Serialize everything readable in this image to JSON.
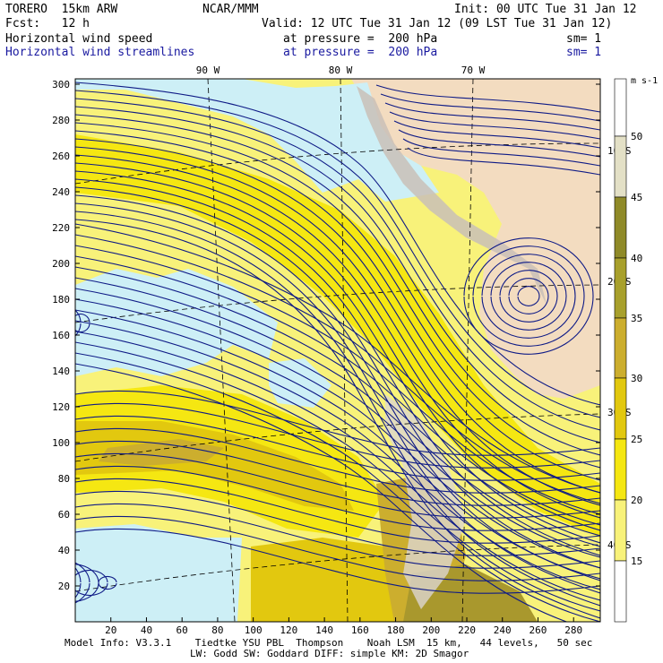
{
  "header": {
    "model": "TORERO  15km ARW",
    "center": "NCAR/MMM",
    "init": "Init: 00 UTC Tue 31 Jan 12",
    "fcst": "Fcst:   12 h",
    "valid": "Valid: 12 UTC Tue 31 Jan 12 (09 LST Tue 31 Jan 12)",
    "field1_name": "Horizontal wind speed",
    "field1_level": "at pressure =  200 hPa",
    "field1_sm": "sm= 1",
    "field2_name": "Horizontal wind streamlines",
    "field2_level": "at pressure =  200 hPa",
    "field2_sm": "sm= 1"
  },
  "map": {
    "top_lon_labels": [
      "90 W",
      "80 W",
      "70 W"
    ],
    "right_lat_labels": [
      "10 S",
      "20 S",
      "30 S",
      "40 S"
    ],
    "x_ticks": [
      "20",
      "40",
      "60",
      "80",
      "100",
      "120",
      "140",
      "160",
      "180",
      "200",
      "220",
      "240",
      "260",
      "280"
    ],
    "y_ticks": [
      "20",
      "40",
      "60",
      "80",
      "100",
      "120",
      "140",
      "160",
      "180",
      "200",
      "220",
      "240",
      "260",
      "280",
      "300"
    ],
    "colors": {
      "land": "#f3dcc0",
      "mountain": "#c9bfb7",
      "low_speed": "#cdeff6",
      "s15": "#f8f27a",
      "s20": "#f5e712",
      "s25": "#e2c80f",
      "s30": "#ccae2e",
      "s35": "#a9982d",
      "streamline": "#0e1a86"
    }
  },
  "colorbar": {
    "units": "m s-1",
    "labels": [
      "50",
      "45",
      "40",
      "35",
      "30",
      "25",
      "20",
      "15"
    ],
    "colors": [
      "#ffffff",
      "#e3e0c6",
      "#8f8a28",
      "#a8a02c",
      "#ccae2e",
      "#e2c80f",
      "#f5e712",
      "#f8f27a",
      "#ffffff"
    ]
  },
  "footer": {
    "line1": "Model Info: V3.3.1    Tiedtke YSU PBL  Thompson    Noah LSM  15 km,   44 levels,   50 sec",
    "line2": "LW: Godd SW: Goddard DIFF: simple KM: 2D Smagor"
  }
}
